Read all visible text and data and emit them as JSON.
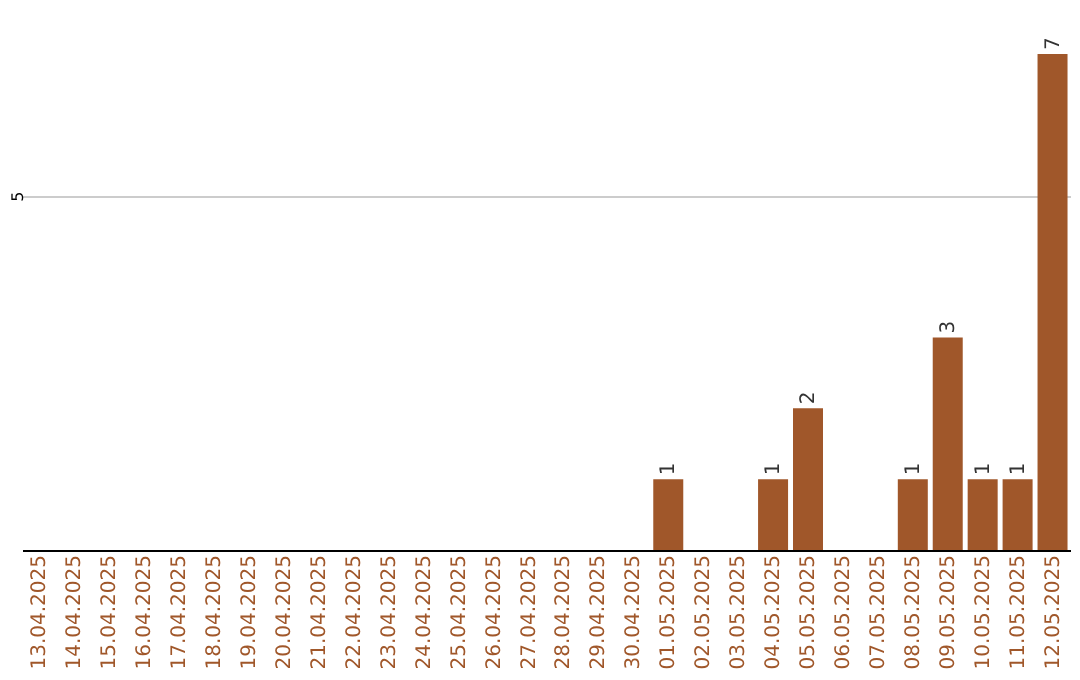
{
  "chart_data": {
    "type": "bar",
    "categories": [
      "13.04.2025",
      "14.04.2025",
      "15.04.2025",
      "16.04.2025",
      "17.04.2025",
      "18.04.2025",
      "19.04.2025",
      "20.04.2025",
      "21.04.2025",
      "22.04.2025",
      "23.04.2025",
      "24.04.2025",
      "25.04.2025",
      "26.04.2025",
      "27.04.2025",
      "28.04.2025",
      "29.04.2025",
      "30.04.2025",
      "01.05.2025",
      "02.05.2025",
      "03.05.2025",
      "04.05.2025",
      "05.05.2025",
      "06.05.2025",
      "07.05.2025",
      "08.05.2025",
      "09.05.2025",
      "10.05.2025",
      "11.05.2025",
      "12.05.2025"
    ],
    "values": [
      null,
      null,
      null,
      null,
      null,
      null,
      null,
      null,
      null,
      null,
      null,
      null,
      null,
      null,
      null,
      null,
      null,
      null,
      1,
      null,
      null,
      1,
      2,
      null,
      null,
      1,
      3,
      1,
      1,
      7
    ],
    "color": "#a0572a",
    "ylim": [
      0,
      7
    ],
    "yticks": [
      5
    ],
    "grid": "y",
    "data_labels": true
  }
}
